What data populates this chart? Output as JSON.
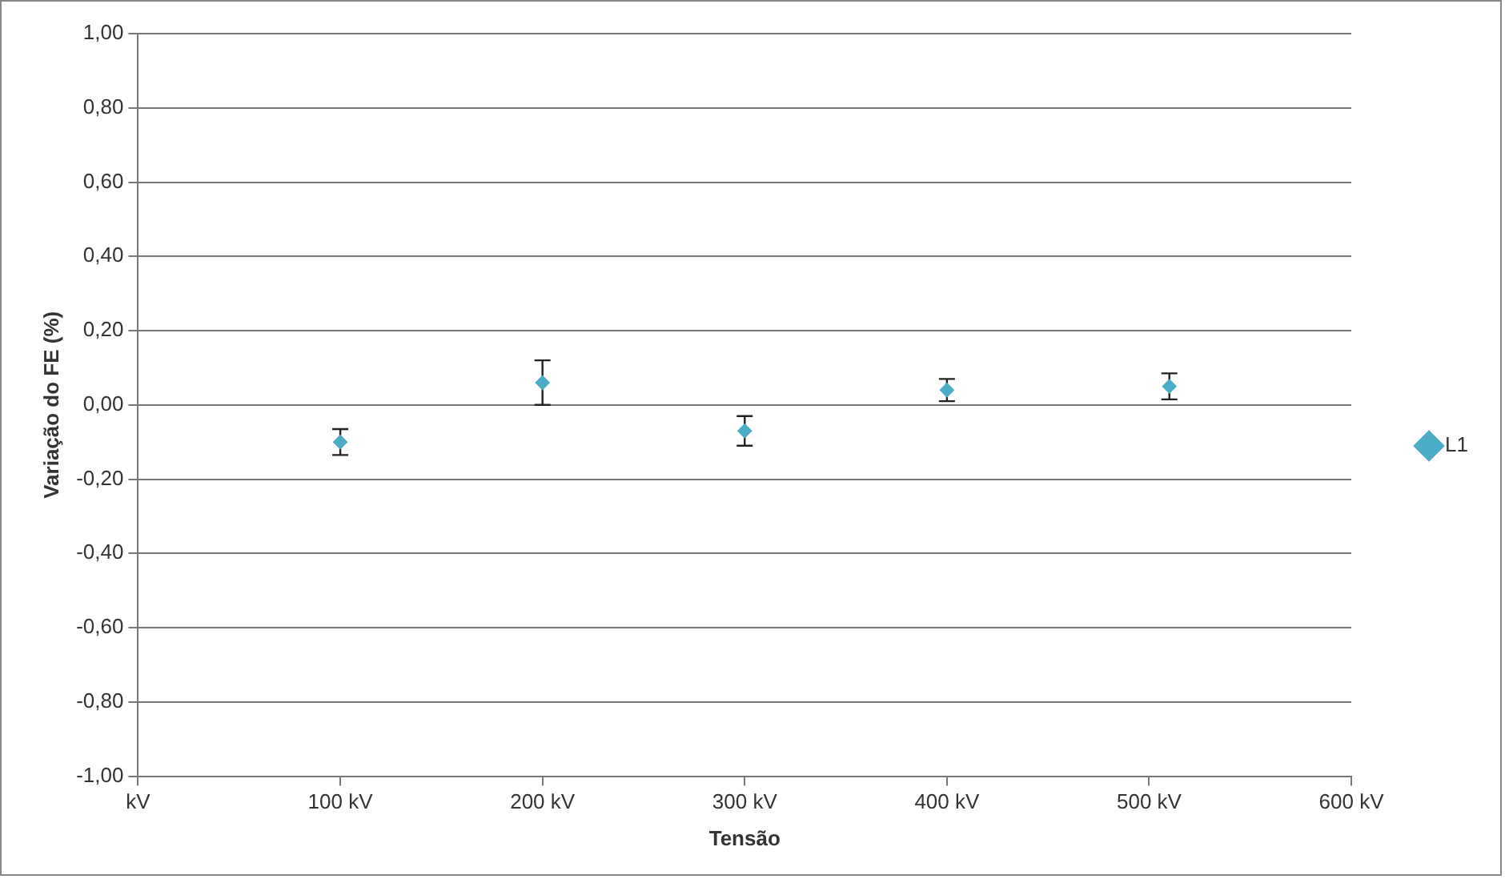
{
  "chart_data": {
    "type": "scatter",
    "xlabel": "Tensão",
    "ylabel": "Variação do FE (%)",
    "xlim": [
      0,
      600
    ],
    "xticks": [
      {
        "value": 0,
        "label": "kV"
      },
      {
        "value": 100,
        "label": "100 kV"
      },
      {
        "value": 200,
        "label": "200 kV"
      },
      {
        "value": 300,
        "label": "300 kV"
      },
      {
        "value": 400,
        "label": "400 kV"
      },
      {
        "value": 500,
        "label": "500 kV"
      },
      {
        "value": 600,
        "label": "600 kV"
      }
    ],
    "ylim": [
      -1,
      1
    ],
    "yticks": [
      {
        "value": -1,
        "label": "-1,00"
      },
      {
        "value": -0.8,
        "label": "-0,80"
      },
      {
        "value": -0.6,
        "label": "-0,60"
      },
      {
        "value": -0.4,
        "label": "-0,40"
      },
      {
        "value": -0.2,
        "label": "-0,20"
      },
      {
        "value": 0,
        "label": "0,00"
      },
      {
        "value": 0.2,
        "label": "0,20"
      },
      {
        "value": 0.4,
        "label": "0,40"
      },
      {
        "value": 0.6,
        "label": "0,60"
      },
      {
        "value": 0.8,
        "label": "0,80"
      },
      {
        "value": 1,
        "label": "1,00"
      }
    ],
    "series": [
      {
        "name": "L1",
        "color": "#4bacc6",
        "x": [
          100,
          200,
          300,
          400,
          510
        ],
        "values": [
          -0.1,
          0.06,
          -0.07,
          0.04,
          0.05
        ],
        "errors": [
          0.035,
          0.06,
          0.04,
          0.03,
          0.035
        ]
      }
    ],
    "grid": "y",
    "legend": "right",
    "marker": "diamond"
  }
}
